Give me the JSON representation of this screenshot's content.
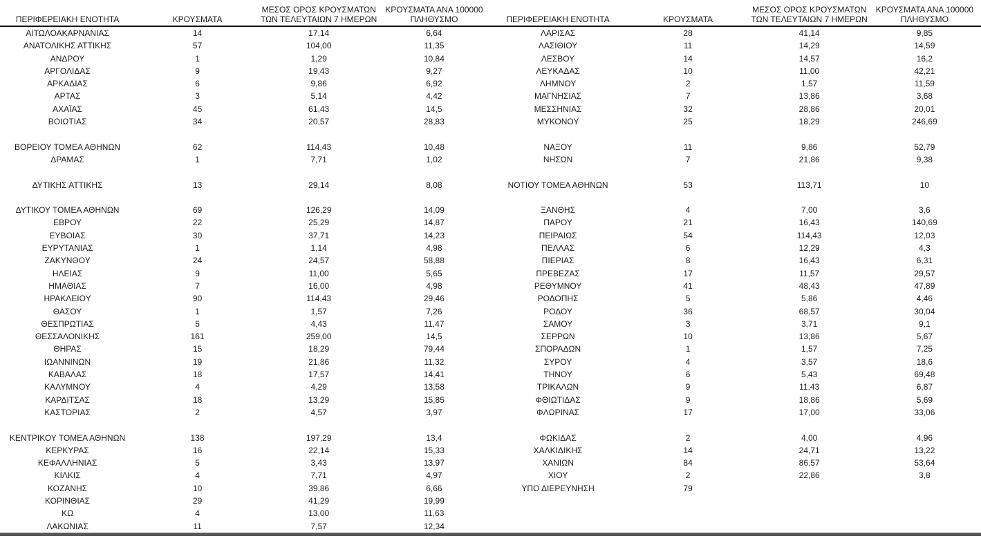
{
  "colors": {
    "text": "#1f1f1f",
    "header_rule": "#000000",
    "bottom_rule": "#595959",
    "background": "#ffffff"
  },
  "tables": [
    {
      "headers": [
        [
          "ΠΕΡΙΦΕΡΕΙΑΚΗ ΕΝΟΤΗΤΑ"
        ],
        [
          "ΚΡΟΥΣΜΑΤΑ"
        ],
        [
          "ΜΕΣΟΣ ΟΡΟΣ ΚΡΟΥΣΜΑΤΩΝ",
          "ΤΩΝ ΤΕΛΕΥΤΑΙΩΝ 7 ΗΜΕΡΩΝ"
        ],
        [
          "ΚΡΟΥΣΜΑΤΑ ΑΝΑ 100000",
          "ΠΛΗΘΥΣΜΟ"
        ]
      ],
      "rows": [
        [
          "ΑΙΤΩΛΟΑΚΑΡΝΑΝΙΑΣ",
          "14",
          "17,14",
          "6,64"
        ],
        [
          "ΑΝΑΤΟΛΙΚΗΣ ΑΤΤΙΚΗΣ",
          "57",
          "104,00",
          "11,35"
        ],
        [
          "ΑΝΔΡΟΥ",
          "1",
          "1,29",
          "10,84"
        ],
        [
          "ΑΡΓΟΛΙΔΑΣ",
          "9",
          "19,43",
          "9,27"
        ],
        [
          "ΑΡΚΑΔΙΑΣ",
          "6",
          "9,86",
          "6,92"
        ],
        [
          "ΑΡΤΑΣ",
          "3",
          "5,14",
          "4,42"
        ],
        [
          "ΑΧΑΪΑΣ",
          "45",
          "61,43",
          "14,5"
        ],
        [
          "ΒΟΙΩΤΙΑΣ",
          "34",
          "20,57",
          "28,83"
        ],
        [
          "",
          "",
          "",
          ""
        ],
        [
          "ΒΟΡΕΙΟΥ ΤΟΜΕΑ ΑΘΗΝΩΝ",
          "62",
          "114,43",
          "10,48"
        ],
        [
          "ΔΡΑΜΑΣ",
          "1",
          "7,71",
          "1,02"
        ],
        [
          "",
          "",
          "",
          ""
        ],
        [
          "ΔΥΤΙΚΗΣ ΑΤΤΙΚΗΣ",
          "13",
          "29,14",
          "8,08"
        ],
        [
          "",
          "",
          "",
          ""
        ],
        [
          "ΔΥΤΙΚΟΥ ΤΟΜΕΑ ΑΘΗΝΩΝ",
          "69",
          "126,29",
          "14,09"
        ],
        [
          "ΕΒΡΟΥ",
          "22",
          "25,29",
          "14,87"
        ],
        [
          "ΕΥΒΟΙΑΣ",
          "30",
          "37,71",
          "14,23"
        ],
        [
          "ΕΥΡΥΤΑΝΙΑΣ",
          "1",
          "1,14",
          "4,98"
        ],
        [
          "ΖΑΚΥΝΘΟΥ",
          "24",
          "24,57",
          "58,88"
        ],
        [
          "ΗΛΕΙΑΣ",
          "9",
          "11,00",
          "5,65"
        ],
        [
          "ΗΜΑΘΙΑΣ",
          "7",
          "16,00",
          "4,98"
        ],
        [
          "ΗΡΑΚΛΕΙΟΥ",
          "90",
          "114,43",
          "29,46"
        ],
        [
          "ΘΑΣΟΥ",
          "1",
          "1,57",
          "7,26"
        ],
        [
          "ΘΕΣΠΡΩΤΙΑΣ",
          "5",
          "4,43",
          "11,47"
        ],
        [
          "ΘΕΣΣΑΛΟΝΙΚΗΣ",
          "161",
          "259,00",
          "14,5"
        ],
        [
          "ΘΗΡΑΣ",
          "15",
          "18,29",
          "79,44"
        ],
        [
          "ΙΩΑΝΝΙΝΩΝ",
          "19",
          "21,86",
          "11,32"
        ],
        [
          "ΚΑΒΑΛΑΣ",
          "18",
          "17,57",
          "14,41"
        ],
        [
          "ΚΑΛΥΜΝΟΥ",
          "4",
          "4,29",
          "13,58"
        ],
        [
          "ΚΑΡΔΙΤΣΑΣ",
          "18",
          "13,29",
          "15,85"
        ],
        [
          "ΚΑΣΤΟΡΙΑΣ",
          "2",
          "4,57",
          "3,97"
        ],
        [
          "",
          "",
          "",
          ""
        ],
        [
          "ΚΕΝΤΡΙΚΟΥ ΤΟΜΕΑ ΑΘΗΝΩΝ",
          "138",
          "197,29",
          "13,4"
        ],
        [
          "ΚΕΡΚΥΡΑΣ",
          "16",
          "22,14",
          "15,33"
        ],
        [
          "ΚΕΦΑΛΛΗΝΙΑΣ",
          "5",
          "3,43",
          "13,97"
        ],
        [
          "ΚΙΛΚΙΣ",
          "4",
          "7,71",
          "4,97"
        ],
        [
          "ΚΟΖΑΝΗΣ",
          "10",
          "39,86",
          "6,66"
        ],
        [
          "ΚΟΡΙΝΘΙΑΣ",
          "29",
          "41,29",
          "19,99"
        ],
        [
          "ΚΩ",
          "4",
          "13,00",
          "11,63"
        ],
        [
          "ΛΑΚΩΝΙΑΣ",
          "11",
          "7,57",
          "12,34"
        ]
      ]
    },
    {
      "headers": [
        [
          "ΠΕΡΙΦΕΡΕΙΑΚΗ ΕΝΟΤΗΤΑ"
        ],
        [
          "ΚΡΟΥΣΜΑΤΑ"
        ],
        [
          "ΜΕΣΟΣ ΟΡΟΣ ΚΡΟΥΣΜΑΤΩΝ",
          "ΤΩΝ ΤΕΛΕΥΤΑΙΩΝ 7 ΗΜΕΡΩΝ"
        ],
        [
          "ΚΡΟΥΣΜΑΤΑ ΑΝΑ 100000",
          "ΠΛΗΘΥΣΜΟ"
        ]
      ],
      "rows": [
        [
          "ΛΑΡΙΣΑΣ",
          "28",
          "41,14",
          "9,85"
        ],
        [
          "ΛΑΣΙΘΙΟΥ",
          "11",
          "14,29",
          "14,59"
        ],
        [
          "ΛΕΣΒΟΥ",
          "14",
          "14,57",
          "16,2"
        ],
        [
          "ΛΕΥΚΑΔΑΣ",
          "10",
          "11,00",
          "42,21"
        ],
        [
          "ΛΗΜΝΟΥ",
          "2",
          "1,57",
          "11,59"
        ],
        [
          "ΜΑΓΝΗΣΙΑΣ",
          "7",
          "13,86",
          "3,68"
        ],
        [
          "ΜΕΣΣΗΝΙΑΣ",
          "32",
          "28,86",
          "20,01"
        ],
        [
          "ΜΥΚΟΝΟΥ",
          "25",
          "18,29",
          "246,69"
        ],
        [
          "",
          "",
          "",
          ""
        ],
        [
          "ΝΑΞΟΥ",
          "11",
          "9,86",
          "52,79"
        ],
        [
          "ΝΗΣΩΝ",
          "7",
          "21,86",
          "9,38"
        ],
        [
          "",
          "",
          "",
          ""
        ],
        [
          "ΝΟΤΙΟΥ ΤΟΜΕΑ ΑΘΗΝΩΝ",
          "53",
          "113,71",
          "10"
        ],
        [
          "",
          "",
          "",
          ""
        ],
        [
          "ΞΑΝΘΗΣ",
          "4",
          "7,00",
          "3,6"
        ],
        [
          "ΠΑΡΟΥ",
          "21",
          "16,43",
          "140,69"
        ],
        [
          "ΠΕΙΡΑΙΩΣ",
          "54",
          "114,43",
          "12,03"
        ],
        [
          "ΠΕΛΛΑΣ",
          "6",
          "12,29",
          "4,3"
        ],
        [
          "ΠΙΕΡΙΑΣ",
          "8",
          "16,43",
          "6,31"
        ],
        [
          "ΠΡΕΒΕΖΑΣ",
          "17",
          "11,57",
          "29,57"
        ],
        [
          "ΡΕΘΥΜΝΟΥ",
          "41",
          "48,43",
          "47,89"
        ],
        [
          "ΡΟΔΟΠΗΣ",
          "5",
          "5,86",
          "4,46"
        ],
        [
          "ΡΟΔΟΥ",
          "36",
          "68,57",
          "30,04"
        ],
        [
          "ΣΑΜΟΥ",
          "3",
          "3,71",
          "9,1"
        ],
        [
          "ΣΕΡΡΩΝ",
          "10",
          "13,86",
          "5,67"
        ],
        [
          "ΣΠΟΡΑΔΩΝ",
          "1",
          "1,57",
          "7,25"
        ],
        [
          "ΣΥΡΟΥ",
          "4",
          "3,57",
          "18,6"
        ],
        [
          "ΤΗΝΟΥ",
          "6",
          "5,43",
          "69,48"
        ],
        [
          "ΤΡΙΚΑΛΩΝ",
          "9",
          "11,43",
          "6,87"
        ],
        [
          "ΦΘΙΩΤΙΔΑΣ",
          "9",
          "18,86",
          "5,69"
        ],
        [
          "ΦΛΩΡΙΝΑΣ",
          "17",
          "17,00",
          "33,06"
        ],
        [
          "",
          "",
          "",
          ""
        ],
        [
          "ΦΩΚΙΔΑΣ",
          "2",
          "4,00",
          "4,96"
        ],
        [
          "ΧΑΛΚΙΔΙΚΗΣ",
          "14",
          "24,71",
          "13,22"
        ],
        [
          "ΧΑΝΙΩΝ",
          "84",
          "86,57",
          "53,64"
        ],
        [
          "ΧΙΟΥ",
          "2",
          "22,86",
          "3,8"
        ],
        [
          "ΥΠΟ ΔΙΕΡΕΥΝΗΣΗ",
          "79",
          "",
          ""
        ],
        [
          "",
          "",
          "",
          ""
        ],
        [
          "",
          "",
          "",
          ""
        ],
        [
          "",
          "",
          "",
          ""
        ]
      ]
    }
  ]
}
